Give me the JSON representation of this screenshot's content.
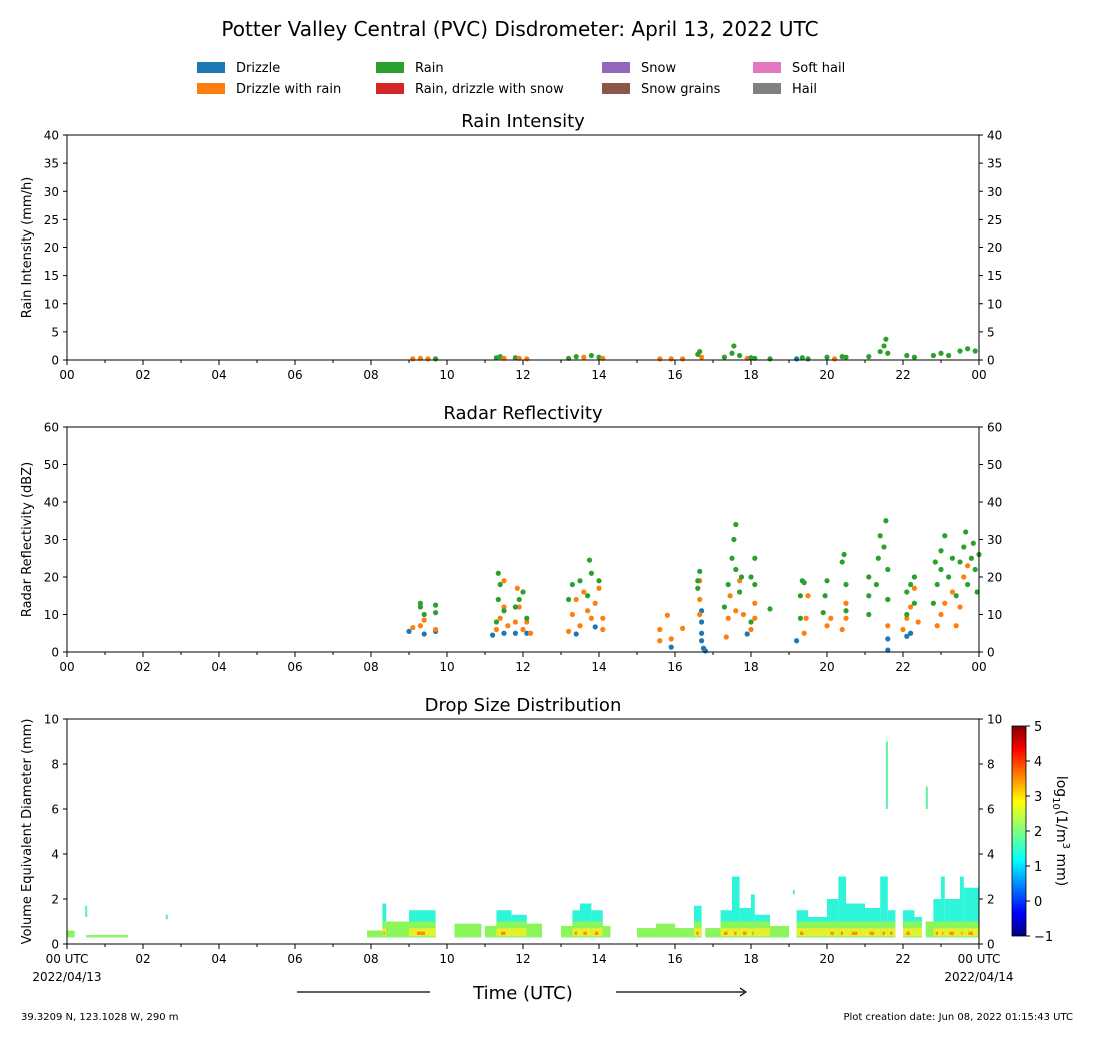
{
  "title": "Potter Valley Central (PVC) Disdrometer: April 13, 2022 UTC",
  "legend": [
    {
      "label": "Drizzle",
      "color": "#1f77b4"
    },
    {
      "label": "Drizzle with rain",
      "color": "#ff7f0e"
    },
    {
      "label": "Rain",
      "color": "#2ca02c"
    },
    {
      "label": "Rain, drizzle with snow",
      "color": "#d62728"
    },
    {
      "label": "Snow",
      "color": "#9467bd"
    },
    {
      "label": "Snow grains",
      "color": "#8c564b"
    },
    {
      "label": "Soft hail",
      "color": "#e377c2"
    },
    {
      "label": "Hail",
      "color": "#7f7f7f"
    }
  ],
  "footer": {
    "location": "39.3209 N, 123.1028 W, 290 m",
    "created": "Plot creation date: Jun 08, 2022 01:15:43 UTC",
    "xlabel": "Time (UTC)",
    "start_date": "2022/04/13",
    "end_date": "2022/04/14"
  },
  "chart_data": [
    {
      "type": "scatter",
      "title": "Rain Intensity",
      "ylabel": "Rain Intensity (mm/h)",
      "ylim": [
        0,
        40
      ],
      "yticks": [
        0,
        5,
        10,
        15,
        20,
        25,
        30,
        35,
        40
      ],
      "xlim": [
        0,
        24
      ],
      "xticklabels": [
        "00",
        "02",
        "04",
        "06",
        "08",
        "10",
        "12",
        "14",
        "16",
        "18",
        "20",
        "22",
        "00"
      ],
      "points": [
        [
          9.1,
          0.2,
          1
        ],
        [
          9.3,
          0.3,
          1
        ],
        [
          9.5,
          0.2,
          1
        ],
        [
          9.7,
          0.2,
          2
        ],
        [
          11.3,
          0.4,
          2
        ],
        [
          11.4,
          0.6,
          2
        ],
        [
          11.5,
          0.3,
          1
        ],
        [
          11.8,
          0.4,
          2
        ],
        [
          11.9,
          0.3,
          1
        ],
        [
          12.1,
          0.2,
          1
        ],
        [
          13.2,
          0.3,
          2
        ],
        [
          13.4,
          0.6,
          2
        ],
        [
          13.6,
          0.5,
          1
        ],
        [
          13.8,
          0.8,
          2
        ],
        [
          14.0,
          0.5,
          2
        ],
        [
          14.1,
          0.3,
          1
        ],
        [
          15.6,
          0.2,
          1
        ],
        [
          15.9,
          0.2,
          1
        ],
        [
          16.2,
          0.2,
          1
        ],
        [
          16.6,
          1.0,
          2
        ],
        [
          16.65,
          1.5,
          2
        ],
        [
          16.7,
          0.5,
          1
        ],
        [
          17.3,
          0.5,
          2
        ],
        [
          17.5,
          1.2,
          2
        ],
        [
          17.55,
          2.5,
          2
        ],
        [
          17.7,
          0.8,
          2
        ],
        [
          17.9,
          0.3,
          1
        ],
        [
          18.0,
          0.4,
          2
        ],
        [
          18.1,
          0.3,
          2
        ],
        [
          18.5,
          0.2,
          2
        ],
        [
          19.2,
          0.2,
          0
        ],
        [
          19.35,
          0.4,
          2
        ],
        [
          19.5,
          0.2,
          2
        ],
        [
          20.0,
          0.5,
          2
        ],
        [
          20.2,
          0.2,
          1
        ],
        [
          20.4,
          0.6,
          2
        ],
        [
          20.5,
          0.5,
          2
        ],
        [
          21.1,
          0.6,
          2
        ],
        [
          21.4,
          1.5,
          2
        ],
        [
          21.5,
          2.5,
          2
        ],
        [
          21.55,
          3.7,
          2
        ],
        [
          21.6,
          1.2,
          2
        ],
        [
          22.1,
          0.8,
          2
        ],
        [
          22.3,
          0.5,
          2
        ],
        [
          22.8,
          0.8,
          2
        ],
        [
          23.0,
          1.2,
          2
        ],
        [
          23.2,
          0.8,
          2
        ],
        [
          23.5,
          1.6,
          2
        ],
        [
          23.7,
          2.0,
          2
        ],
        [
          23.9,
          1.6,
          2
        ]
      ]
    },
    {
      "type": "scatter",
      "title": "Radar Reflectivity",
      "ylabel": "Radar Reflectivity (dBZ)",
      "ylim": [
        0,
        60
      ],
      "yticks": [
        0,
        10,
        20,
        30,
        40,
        50,
        60
      ],
      "xlim": [
        0,
        24
      ],
      "xticklabels": [
        "00",
        "02",
        "04",
        "06",
        "08",
        "10",
        "12",
        "14",
        "16",
        "18",
        "20",
        "22",
        "00"
      ],
      "points": [
        [
          9.0,
          5.5,
          0
        ],
        [
          9.4,
          4.8,
          0
        ],
        [
          9.7,
          5.5,
          0
        ],
        [
          11.2,
          4.5,
          0
        ],
        [
          11.5,
          5,
          0
        ],
        [
          11.8,
          5,
          0
        ],
        [
          12.1,
          5,
          0
        ],
        [
          13.4,
          4.8,
          0
        ],
        [
          13.9,
          6.7,
          0
        ],
        [
          15.9,
          1.3,
          0
        ],
        [
          16.7,
          11,
          0
        ],
        [
          16.7,
          8,
          0
        ],
        [
          16.7,
          5,
          0
        ],
        [
          16.7,
          3,
          0
        ],
        [
          16.75,
          1,
          0
        ],
        [
          16.8,
          0.3,
          0
        ],
        [
          17.9,
          4.8,
          0
        ],
        [
          19.2,
          3,
          0
        ],
        [
          21.6,
          3.5,
          0
        ],
        [
          21.6,
          0.5,
          0
        ],
        [
          22.1,
          4.2,
          0
        ],
        [
          22.2,
          5,
          0
        ],
        [
          9.1,
          6.5,
          1
        ],
        [
          9.3,
          7,
          1
        ],
        [
          9.4,
          8.5,
          1
        ],
        [
          9.7,
          6,
          1
        ],
        [
          11.3,
          6,
          1
        ],
        [
          11.4,
          9,
          1
        ],
        [
          11.5,
          12,
          1
        ],
        [
          11.5,
          19,
          1
        ],
        [
          11.6,
          7,
          1
        ],
        [
          11.8,
          8,
          1
        ],
        [
          11.9,
          12,
          1
        ],
        [
          11.85,
          17,
          1
        ],
        [
          12.0,
          6,
          1
        ],
        [
          12.1,
          8,
          1
        ],
        [
          12.2,
          5,
          1
        ],
        [
          13.2,
          5.5,
          1
        ],
        [
          13.3,
          10,
          1
        ],
        [
          13.4,
          14,
          1
        ],
        [
          13.5,
          7,
          1
        ],
        [
          13.6,
          16,
          1
        ],
        [
          13.7,
          11,
          1
        ],
        [
          13.8,
          9,
          1
        ],
        [
          13.9,
          13,
          1
        ],
        [
          14.0,
          17,
          1
        ],
        [
          14.1,
          6,
          1
        ],
        [
          14.1,
          9,
          1
        ],
        [
          15.6,
          3,
          1
        ],
        [
          15.6,
          6,
          1
        ],
        [
          15.8,
          9.8,
          1
        ],
        [
          15.9,
          3.5,
          1
        ],
        [
          16.2,
          6.3,
          1
        ],
        [
          16.65,
          10,
          1
        ],
        [
          16.65,
          14,
          1
        ],
        [
          16.65,
          19,
          1
        ],
        [
          17.35,
          4,
          1
        ],
        [
          17.4,
          9,
          1
        ],
        [
          17.45,
          15,
          1
        ],
        [
          17.6,
          11,
          1
        ],
        [
          17.7,
          19,
          1
        ],
        [
          17.8,
          10,
          1
        ],
        [
          18.0,
          6,
          1
        ],
        [
          18.1,
          9,
          1
        ],
        [
          18.1,
          13,
          1
        ],
        [
          19.4,
          5,
          1
        ],
        [
          19.45,
          9,
          1
        ],
        [
          19.5,
          15,
          1
        ],
        [
          20.0,
          7,
          1
        ],
        [
          20.1,
          9,
          1
        ],
        [
          20.4,
          6,
          1
        ],
        [
          20.5,
          9,
          1
        ],
        [
          20.5,
          13,
          1
        ],
        [
          21.6,
          7,
          1
        ],
        [
          21.6,
          14,
          1
        ],
        [
          22.0,
          6,
          1
        ],
        [
          22.1,
          9,
          1
        ],
        [
          22.2,
          12,
          1
        ],
        [
          22.3,
          17,
          1
        ],
        [
          22.4,
          8,
          1
        ],
        [
          22.9,
          7,
          1
        ],
        [
          23.0,
          10,
          1
        ],
        [
          23.1,
          13,
          1
        ],
        [
          23.3,
          16,
          1
        ],
        [
          23.5,
          12,
          1
        ],
        [
          23.6,
          20,
          1
        ],
        [
          23.7,
          23,
          1
        ],
        [
          23.4,
          7,
          1
        ],
        [
          9.3,
          12,
          2
        ],
        [
          9.3,
          13,
          2
        ],
        [
          9.4,
          10,
          2
        ],
        [
          9.7,
          12.5,
          2
        ],
        [
          9.7,
          10.5,
          2
        ],
        [
          11.3,
          8,
          2
        ],
        [
          11.35,
          14,
          2
        ],
        [
          11.4,
          18,
          2
        ],
        [
          11.35,
          21,
          2
        ],
        [
          11.5,
          11,
          2
        ],
        [
          11.8,
          12,
          2
        ],
        [
          11.9,
          14,
          2
        ],
        [
          12.0,
          16,
          2
        ],
        [
          12.1,
          9,
          2
        ],
        [
          13.2,
          14,
          2
        ],
        [
          13.3,
          18,
          2
        ],
        [
          13.5,
          19,
          2
        ],
        [
          13.7,
          15,
          2
        ],
        [
          13.75,
          24.5,
          2
        ],
        [
          13.8,
          21,
          2
        ],
        [
          14.0,
          19,
          2
        ],
        [
          16.6,
          17,
          2
        ],
        [
          16.6,
          19,
          2
        ],
        [
          16.65,
          21.5,
          2
        ],
        [
          17.3,
          12,
          2
        ],
        [
          17.4,
          18,
          2
        ],
        [
          17.5,
          25,
          2
        ],
        [
          17.55,
          30,
          2
        ],
        [
          17.6,
          34,
          2
        ],
        [
          17.6,
          22,
          2
        ],
        [
          17.7,
          16,
          2
        ],
        [
          17.75,
          20,
          2
        ],
        [
          18.0,
          8,
          2
        ],
        [
          18.0,
          20,
          2
        ],
        [
          18.1,
          25,
          2
        ],
        [
          18.1,
          18,
          2
        ],
        [
          18.5,
          11.5,
          2
        ],
        [
          19.3,
          9,
          2
        ],
        [
          19.3,
          15,
          2
        ],
        [
          19.35,
          19,
          2
        ],
        [
          19.4,
          18.5,
          2
        ],
        [
          19.9,
          10.5,
          2
        ],
        [
          19.95,
          15,
          2
        ],
        [
          20.0,
          19,
          2
        ],
        [
          20.4,
          24,
          2
        ],
        [
          20.45,
          26,
          2
        ],
        [
          20.5,
          18,
          2
        ],
        [
          20.5,
          11,
          2
        ],
        [
          21.1,
          10,
          2
        ],
        [
          21.1,
          15,
          2
        ],
        [
          21.1,
          20,
          2
        ],
        [
          21.3,
          18,
          2
        ],
        [
          21.35,
          25,
          2
        ],
        [
          21.4,
          31,
          2
        ],
        [
          21.5,
          28,
          2
        ],
        [
          21.55,
          35,
          2
        ],
        [
          21.6,
          22,
          2
        ],
        [
          21.6,
          14,
          2
        ],
        [
          22.1,
          10,
          2
        ],
        [
          22.1,
          16,
          2
        ],
        [
          22.2,
          18,
          2
        ],
        [
          22.3,
          20,
          2
        ],
        [
          22.3,
          13,
          2
        ],
        [
          22.8,
          13,
          2
        ],
        [
          22.9,
          18,
          2
        ],
        [
          23.0,
          22,
          2
        ],
        [
          23.0,
          27,
          2
        ],
        [
          23.1,
          31,
          2
        ],
        [
          23.2,
          20,
          2
        ],
        [
          23.4,
          15,
          2
        ],
        [
          23.5,
          24,
          2
        ],
        [
          23.6,
          28,
          2
        ],
        [
          23.65,
          32,
          2
        ],
        [
          23.7,
          18,
          2
        ],
        [
          23.8,
          25,
          2
        ],
        [
          23.85,
          29,
          2
        ],
        [
          23.9,
          22,
          2
        ],
        [
          23.95,
          16,
          2
        ],
        [
          24.0,
          26,
          2
        ],
        [
          22.85,
          24,
          2
        ],
        [
          23.3,
          25,
          2
        ]
      ]
    },
    {
      "type": "heatmap",
      "title": "Drop Size Distribution",
      "ylabel": "Volume Equivalent Diameter (mm)",
      "ylim": [
        0,
        10
      ],
      "yticks": [
        0,
        2,
        4,
        6,
        8,
        10
      ],
      "xlim": [
        0,
        24
      ],
      "xticklabels": [
        "00 UTC",
        "02",
        "04",
        "06",
        "08",
        "10",
        "12",
        "14",
        "16",
        "18",
        "20",
        "22",
        "00 UTC"
      ],
      "colorbar": {
        "label": "log10(1/m3 mm)",
        "label_main": "log",
        "label_sub": "10",
        "label_rest": "(1/m",
        "label_sup": "3",
        "label_end": " mm)",
        "range": [
          -1,
          5
        ],
        "ticks": [
          "−1",
          "0",
          "1",
          "2",
          "3",
          "4",
          "5"
        ]
      },
      "columns": [
        [
          0,
          0.2,
          0.6
        ],
        [
          0.5,
          1.6,
          0.4
        ],
        [
          7.9,
          8.3,
          0.6
        ],
        [
          8.3,
          8.4,
          1.8
        ],
        [
          8.4,
          9,
          1.0
        ],
        [
          9,
          9.7,
          1.5
        ],
        [
          10.2,
          10.9,
          0.9
        ],
        [
          11,
          11.3,
          0.8
        ],
        [
          11.3,
          11.7,
          1.5
        ],
        [
          11.7,
          12.1,
          1.3
        ],
        [
          12.1,
          12.5,
          0.9
        ],
        [
          13,
          13.3,
          0.8
        ],
        [
          13.3,
          13.5,
          1.5
        ],
        [
          13.5,
          13.8,
          1.8
        ],
        [
          13.8,
          14.1,
          1.5
        ],
        [
          14.1,
          14.3,
          0.8
        ],
        [
          15,
          15.5,
          0.7
        ],
        [
          15.5,
          16,
          0.9
        ],
        [
          16,
          16.5,
          0.7
        ],
        [
          16.5,
          16.7,
          1.7
        ],
        [
          16.8,
          17.2,
          0.7
        ],
        [
          17.2,
          17.5,
          1.5
        ],
        [
          17.5,
          17.7,
          3.0
        ],
        [
          17.7,
          18,
          1.6
        ],
        [
          18,
          18.1,
          2.2
        ],
        [
          18.1,
          18.5,
          1.3
        ],
        [
          18.5,
          19,
          0.8
        ],
        [
          19.2,
          19.5,
          1.5
        ],
        [
          19.5,
          20,
          1.2
        ],
        [
          20,
          20.3,
          2.0
        ],
        [
          20.3,
          20.5,
          3.0
        ],
        [
          20.5,
          21,
          1.8
        ],
        [
          21,
          21.4,
          1.6
        ],
        [
          21.4,
          21.6,
          3.0
        ],
        [
          21.6,
          21.8,
          1.5
        ],
        [
          22,
          22.3,
          1.5
        ],
        [
          22.3,
          22.5,
          1.2
        ],
        [
          22.6,
          22.8,
          1.0
        ],
        [
          22.8,
          23,
          2.0
        ],
        [
          23,
          23.1,
          3.0
        ],
        [
          23.1,
          23.5,
          2.0
        ],
        [
          23.5,
          23.6,
          3.0
        ],
        [
          23.6,
          24,
          2.5
        ]
      ],
      "segments": [
        [
          0.48,
          1.2,
          1.7
        ],
        [
          2.6,
          1.1,
          1.3
        ],
        [
          19.1,
          2.2,
          2.4
        ],
        [
          21.55,
          6,
          9
        ],
        [
          22.6,
          6,
          7
        ]
      ]
    }
  ]
}
